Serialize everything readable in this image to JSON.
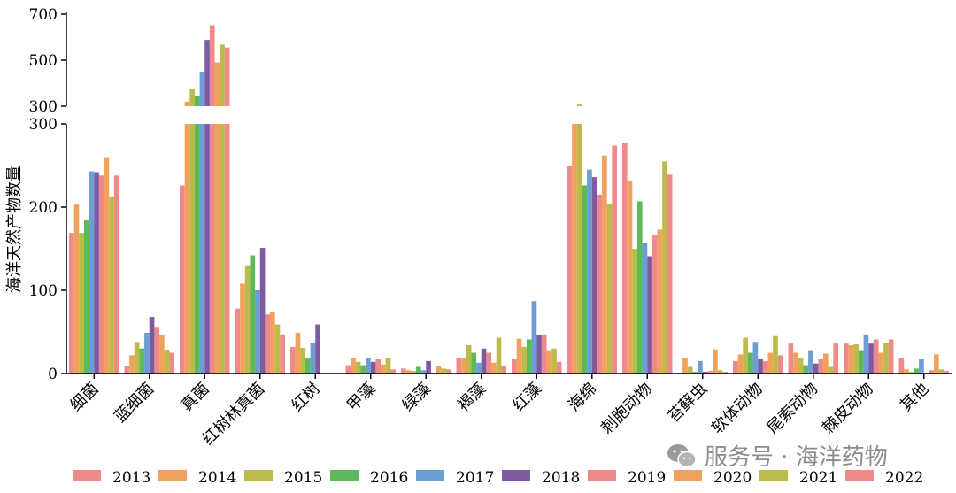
{
  "chart_data": {
    "type": "bar",
    "ylabel": "海洋天然产物数量",
    "y_axis": {
      "broken": true,
      "lower_range": [
        0,
        300
      ],
      "lower_ticks": [
        0,
        100,
        200,
        300
      ],
      "upper_range": [
        300,
        700
      ],
      "upper_ticks": [
        300,
        500,
        700
      ]
    },
    "categories": [
      "细菌",
      "蓝细菌",
      "真菌",
      "红树林真菌",
      "红树",
      "甲藻",
      "绿藻",
      "褐藻",
      "红藻",
      "海绵",
      "刺胞动物",
      "苔藓虫",
      "软体动物",
      "尾索动物",
      "棘皮动物",
      "其他"
    ],
    "series": [
      {
        "name": "2013",
        "color": "#ee8b89",
        "values": [
          169,
          9,
          226,
          78,
          32,
          10,
          6,
          18,
          17,
          249,
          277,
          1,
          15,
          36,
          36,
          19
        ]
      },
      {
        "name": "2014",
        "color": "#f2a15d",
        "values": [
          203,
          22,
          320,
          108,
          49,
          19,
          4,
          18,
          42,
          300,
          232,
          19,
          23,
          25,
          34,
          5
        ]
      },
      {
        "name": "2015",
        "color": "#bcbb49",
        "values": [
          169,
          38,
          376,
          130,
          31,
          14,
          3,
          34,
          32,
          310,
          150,
          8,
          43,
          18,
          35,
          2
        ]
      },
      {
        "name": "2016",
        "color": "#5cba5a",
        "values": [
          184,
          30,
          345,
          142,
          18,
          10,
          8,
          25,
          41,
          226,
          207,
          2,
          25,
          10,
          27,
          6
        ]
      },
      {
        "name": "2017",
        "color": "#6a9ed4",
        "values": [
          243,
          49,
          450,
          100,
          37,
          19,
          4,
          13,
          87,
          245,
          157,
          15,
          38,
          27,
          47,
          17
        ]
      },
      {
        "name": "2018",
        "color": "#7e5aa3",
        "values": [
          242,
          68,
          588,
          151,
          59,
          14,
          15,
          30,
          46,
          236,
          141,
          2,
          17,
          12,
          36,
          1
        ]
      },
      {
        "name": "2019",
        "color": "#ee8b89",
        "values": [
          238,
          55,
          652,
          71,
          0,
          17,
          1,
          25,
          47,
          215,
          166,
          3,
          15,
          17,
          41,
          4
        ]
      },
      {
        "name": "2020",
        "color": "#f2a15d",
        "values": [
          260,
          46,
          490,
          74,
          0,
          11,
          9,
          13,
          27,
          262,
          173,
          29,
          25,
          24,
          25,
          23
        ]
      },
      {
        "name": "2021",
        "color": "#bcbb49",
        "values": [
          212,
          28,
          568,
          59,
          0,
          19,
          6,
          43,
          30,
          204,
          255,
          4,
          45,
          8,
          37,
          5
        ]
      },
      {
        "name": "2022",
        "color": "#ee8b89",
        "values": [
          238,
          25,
          555,
          47,
          0,
          5,
          5,
          9,
          14,
          274,
          239,
          2,
          22,
          36,
          41,
          3
        ]
      }
    ]
  },
  "legend": {
    "series_names": [
      "2013",
      "2014",
      "2015",
      "2016",
      "2017",
      "2018",
      "2019",
      "2020",
      "2021",
      "2022"
    ]
  },
  "watermark": {
    "text": "服务号 · 海洋药物",
    "icon": "wechat-icon"
  }
}
